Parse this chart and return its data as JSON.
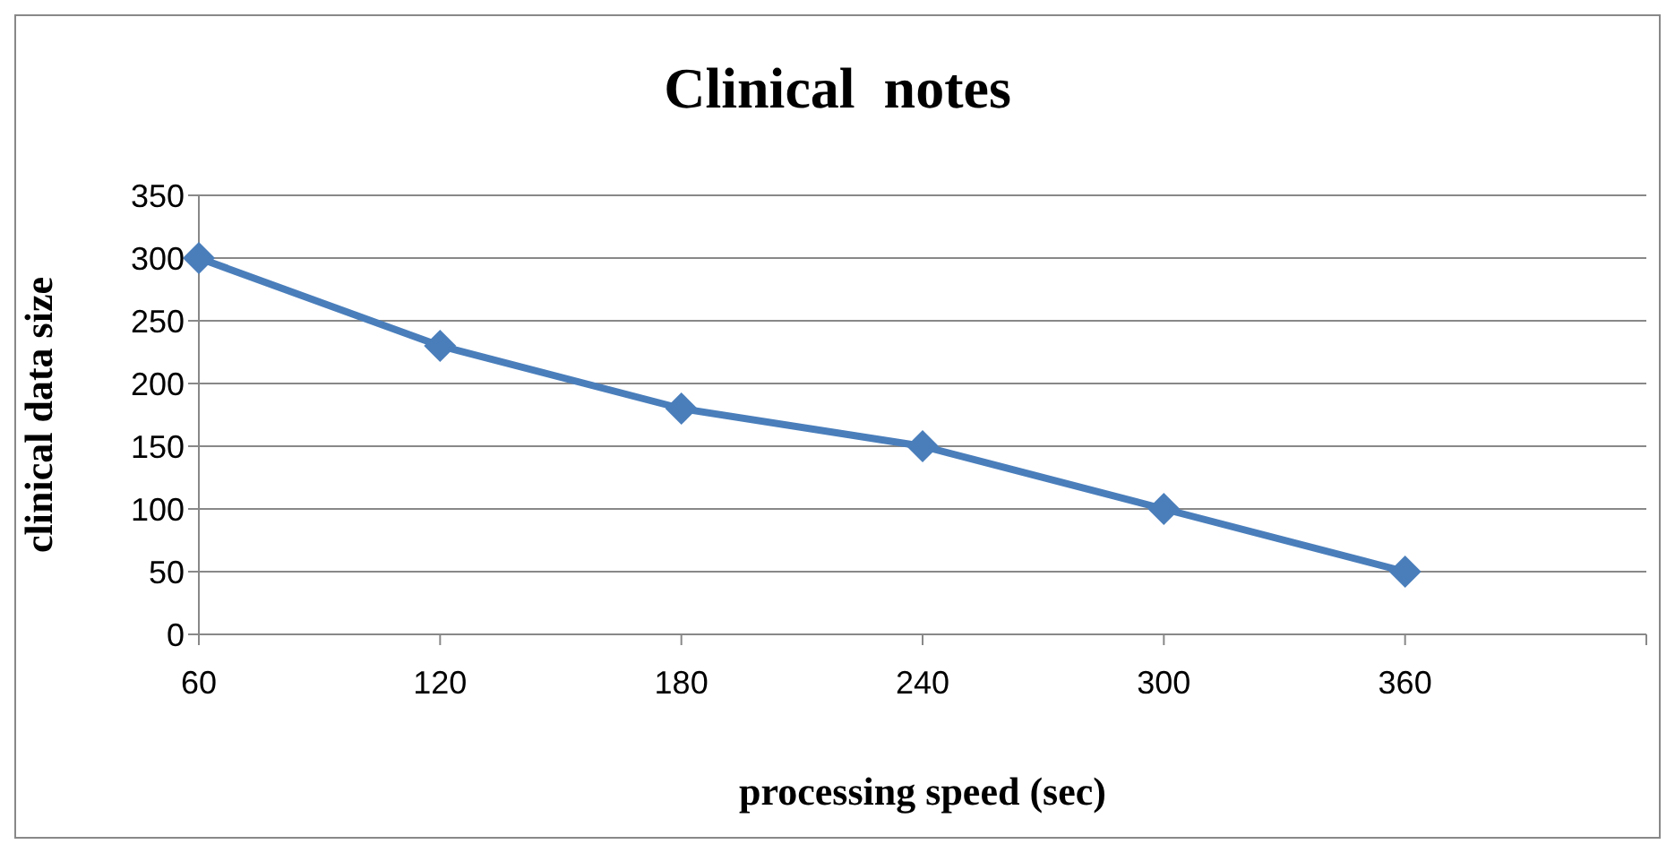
{
  "chart_data": {
    "type": "line",
    "title": "Clinical  notes",
    "xlabel": "processing speed (sec)",
    "ylabel": "clinical  data size",
    "categories": [
      "60",
      "120",
      "180",
      "240",
      "300",
      "360",
      null
    ],
    "series": [
      {
        "color": "#4a7ebb",
        "values": [
          300,
          230,
          180,
          150,
          100,
          50,
          null
        ]
      }
    ],
    "ylim": [
      0,
      350
    ],
    "yticks": [
      0,
      50,
      100,
      150,
      200,
      250,
      300,
      350
    ],
    "grid": "y",
    "marker": "diamond",
    "line_style": "solid"
  }
}
